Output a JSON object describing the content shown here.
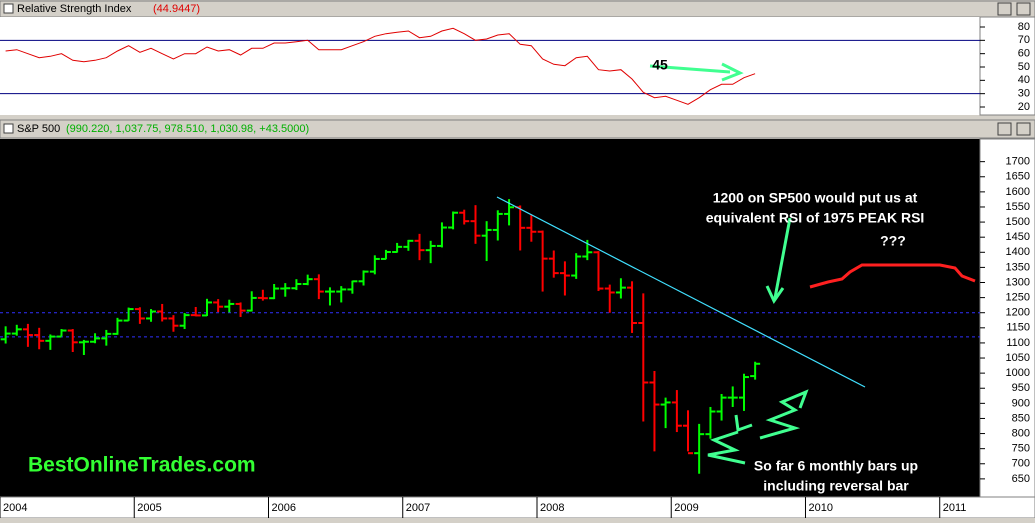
{
  "chart_data": [
    {
      "type": "line",
      "title": "Relative Strength Index",
      "value_label": "(44.9447)",
      "x": [
        2004.042,
        2004.125,
        2004.208,
        2004.292,
        2004.375,
        2004.458,
        2004.542,
        2004.625,
        2004.708,
        2004.792,
        2004.875,
        2004.958,
        2005.042,
        2005.125,
        2005.208,
        2005.292,
        2005.375,
        2005.458,
        2005.542,
        2005.625,
        2005.708,
        2005.792,
        2005.875,
        2005.958,
        2006.042,
        2006.125,
        2006.208,
        2006.292,
        2006.375,
        2006.458,
        2006.542,
        2006.625,
        2006.708,
        2006.792,
        2006.875,
        2006.958,
        2007.042,
        2007.125,
        2007.208,
        2007.292,
        2007.375,
        2007.458,
        2007.542,
        2007.625,
        2007.708,
        2007.792,
        2007.875,
        2007.958,
        2008.042,
        2008.125,
        2008.208,
        2008.292,
        2008.375,
        2008.458,
        2008.542,
        2008.625,
        2008.708,
        2008.792,
        2008.875,
        2008.958,
        2009.042,
        2009.125,
        2009.208,
        2009.292,
        2009.375,
        2009.458,
        2009.542,
        2009.625
      ],
      "series": [
        {
          "color": "#e00000",
          "values": [
            62,
            63,
            60,
            57,
            58,
            60,
            55,
            54,
            55,
            57,
            62,
            66,
            61,
            64,
            60,
            56,
            60,
            60,
            65,
            62,
            63,
            59,
            64,
            64,
            68,
            68,
            69,
            70,
            63,
            63,
            63,
            66,
            69,
            73,
            75,
            76,
            77,
            72,
            73,
            77,
            79,
            75,
            70,
            71,
            74,
            75,
            67,
            66,
            56,
            52,
            51,
            57,
            58,
            48,
            47,
            48,
            41,
            31,
            27,
            28,
            25,
            22,
            27,
            33,
            37,
            37,
            42,
            44.9447
          ]
        }
      ],
      "xlim": [
        2004,
        2011.3
      ],
      "ylim": [
        14,
        87.5
      ],
      "yticks": [
        20,
        30,
        40,
        50,
        60,
        70,
        80
      ],
      "reference_lines": [
        30,
        70
      ],
      "reference_color": "#000080",
      "annotations": [
        "45"
      ]
    },
    {
      "type": "ohlc",
      "title": "S&P 500",
      "value_label": "(990.220, 1,037.75, 978.510, 1,030.98, +43.5000)",
      "x": [
        2004.042,
        2004.125,
        2004.208,
        2004.292,
        2004.375,
        2004.458,
        2004.542,
        2004.625,
        2004.708,
        2004.792,
        2004.875,
        2004.958,
        2005.042,
        2005.125,
        2005.208,
        2005.292,
        2005.375,
        2005.458,
        2005.542,
        2005.625,
        2005.708,
        2005.792,
        2005.875,
        2005.958,
        2006.042,
        2006.125,
        2006.208,
        2006.292,
        2006.375,
        2006.458,
        2006.542,
        2006.625,
        2006.708,
        2006.792,
        2006.875,
        2006.958,
        2007.042,
        2007.125,
        2007.208,
        2007.292,
        2007.375,
        2007.458,
        2007.542,
        2007.625,
        2007.708,
        2007.792,
        2007.875,
        2007.958,
        2008.042,
        2008.125,
        2008.208,
        2008.292,
        2008.375,
        2008.458,
        2008.542,
        2008.625,
        2008.708,
        2008.792,
        2008.875,
        2008.958,
        2009.042,
        2009.125,
        2009.208,
        2009.292,
        2009.375,
        2009.458,
        2009.542,
        2009.625
      ],
      "open": [
        1112,
        1131,
        1145,
        1126,
        1107,
        1121,
        1141,
        1102,
        1104,
        1115,
        1130,
        1174,
        1212,
        1181,
        1204,
        1181,
        1157,
        1192,
        1191,
        1234,
        1220,
        1229,
        1207,
        1249,
        1248,
        1280,
        1281,
        1295,
        1311,
        1270,
        1270,
        1277,
        1304,
        1336,
        1378,
        1401,
        1418,
        1438,
        1407,
        1421,
        1482,
        1531,
        1503,
        1455,
        1474,
        1527,
        1549,
        1481,
        1468,
        1379,
        1331,
        1323,
        1386,
        1400,
        1280,
        1267,
        1283,
        1166,
        969,
        896,
        903,
        826,
        735,
        798,
        873,
        919,
        919,
        990.22
      ],
      "high": [
        1155,
        1160,
        1163,
        1150,
        1128,
        1146,
        1146,
        1110,
        1132,
        1143,
        1183,
        1217,
        1218,
        1212,
        1229,
        1192,
        1199,
        1219,
        1246,
        1245,
        1243,
        1234,
        1271,
        1276,
        1295,
        1298,
        1311,
        1326,
        1327,
        1284,
        1288,
        1306,
        1340,
        1390,
        1408,
        1431,
        1441,
        1461,
        1438,
        1499,
        1535,
        1541,
        1556,
        1503,
        1539,
        1576,
        1555,
        1523,
        1472,
        1406,
        1370,
        1397,
        1441,
        1404,
        1293,
        1314,
        1304,
        1264,
        1007,
        919,
        944,
        877,
        832,
        888,
        931,
        956,
        998,
        1037.75
      ],
      "low": [
        1098,
        1124,
        1087,
        1079,
        1077,
        1122,
        1070,
        1060,
        1099,
        1091,
        1127,
        1173,
        1163,
        1170,
        1171,
        1137,
        1146,
        1188,
        1189,
        1202,
        1201,
        1186,
        1204,
        1240,
        1245,
        1253,
        1275,
        1291,
        1245,
        1224,
        1234,
        1263,
        1290,
        1327,
        1377,
        1399,
        1405,
        1374,
        1364,
        1416,
        1476,
        1492,
        1428,
        1371,
        1439,
        1489,
        1406,
        1435,
        1270,
        1316,
        1257,
        1312,
        1374,
        1272,
        1200,
        1247,
        1133,
        840,
        741,
        818,
        805,
        741,
        667,
        783,
        843,
        888,
        875,
        978.51
      ],
      "close": [
        1131,
        1145,
        1126,
        1107,
        1121,
        1141,
        1102,
        1104,
        1115,
        1130,
        1174,
        1212,
        1181,
        1204,
        1181,
        1157,
        1192,
        1191,
        1234,
        1220,
        1229,
        1207,
        1249,
        1248,
        1280,
        1281,
        1295,
        1311,
        1270,
        1270,
        1277,
        1304,
        1336,
        1378,
        1401,
        1418,
        1438,
        1407,
        1421,
        1482,
        1531,
        1503,
        1455,
        1474,
        1527,
        1549,
        1481,
        1468,
        1379,
        1331,
        1323,
        1386,
        1400,
        1280,
        1267,
        1283,
        1166,
        969,
        896,
        903,
        826,
        735,
        798,
        873,
        919,
        919,
        987,
        1030.98
      ],
      "up_color": "#00ff00",
      "down_color": "#ff0000",
      "xlim": [
        2004,
        2011.3
      ],
      "ylim": [
        590,
        1775
      ],
      "yticks": [
        650,
        700,
        750,
        800,
        850,
        900,
        950,
        1000,
        1050,
        1100,
        1150,
        1200,
        1250,
        1300,
        1350,
        1400,
        1450,
        1500,
        1550,
        1600,
        1650,
        1700
      ],
      "xticks": [
        2004,
        2005,
        2006,
        2007,
        2008,
        2009,
        2010,
        2011
      ],
      "reference_lines": [
        1200,
        1120
      ],
      "reference_color": "#3030ff",
      "annotations": [
        "1200 on SP500 would put us at",
        "equivalent RSI of 1975 PEAK RSI",
        "???",
        "So far 6 monthly bars up",
        "including reversal bar",
        "BestOnlineTrades.com"
      ]
    }
  ]
}
